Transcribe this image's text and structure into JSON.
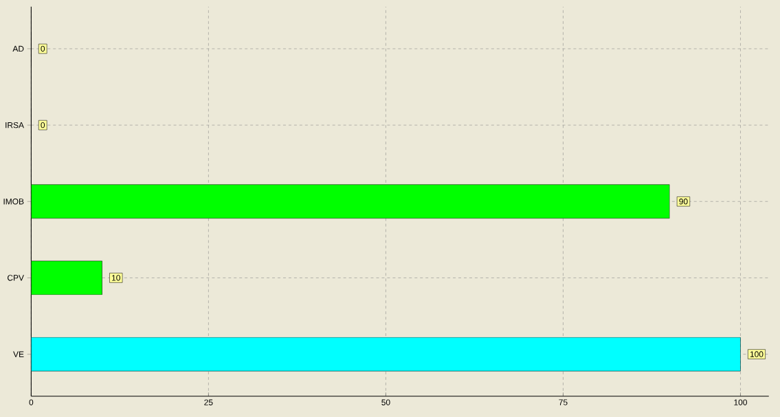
{
  "chart_data": {
    "type": "bar",
    "orientation": "horizontal",
    "categories": [
      "AD",
      "IRSA",
      "IMOB",
      "CPV",
      "VE"
    ],
    "values": [
      0,
      0,
      90,
      10,
      100
    ],
    "colors": [
      "#007a00",
      "#007a00",
      "#00ff00",
      "#00ff00",
      "#00ffff"
    ],
    "xlim": [
      0,
      104
    ],
    "xticks": [
      0,
      25,
      50,
      75,
      100
    ],
    "grid": true,
    "data_labels": true
  }
}
